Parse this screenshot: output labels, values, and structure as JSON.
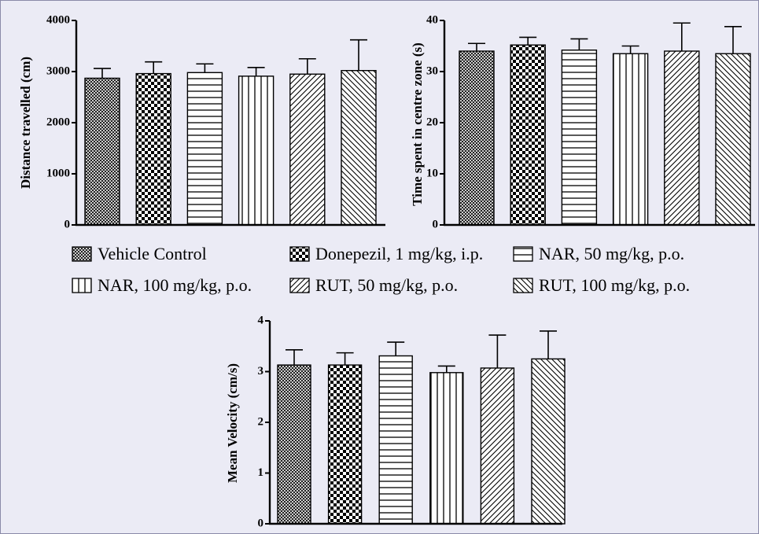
{
  "legend": [
    {
      "label": "Vehicle Control",
      "pattern": "cross-hatch"
    },
    {
      "label": "Donepezil, 1 mg/kg, i.p.",
      "pattern": "checkerboard"
    },
    {
      "label": "NAR, 50 mg/kg, p.o.",
      "pattern": "horizontal-lines"
    },
    {
      "label": "NAR, 100 mg/kg, p.o.",
      "pattern": "vertical-lines"
    },
    {
      "label": "RUT, 50 mg/kg, p.o.",
      "pattern": "diagonal-up"
    },
    {
      "label": "RUT, 100 mg/kg, p.o.",
      "pattern": "diagonal-down"
    }
  ],
  "colors": {
    "background": "#ebebf5",
    "bar_fill": "#ffffff",
    "ink": "#000000"
  },
  "chart_data": [
    {
      "type": "bar",
      "title": "",
      "xlabel": "",
      "ylabel": "Distance travelled (cm)",
      "ylim": [
        0,
        4000
      ],
      "yticks": [
        "0",
        "1000",
        "2000",
        "3000",
        "4000"
      ],
      "categories": [
        "Vehicle Control",
        "Donepezil, 1 mg/kg, i.p.",
        "NAR, 50 mg/kg, p.o.",
        "NAR, 100 mg/kg, p.o.",
        "RUT, 50 mg/kg, p.o.",
        "RUT, 100 mg/kg, p.o."
      ],
      "values": [
        2870,
        2960,
        2980,
        2910,
        2950,
        3020
      ],
      "errors": [
        190,
        230,
        170,
        170,
        300,
        600
      ],
      "grid": false
    },
    {
      "type": "bar",
      "title": "",
      "xlabel": "",
      "ylabel": "Time spent in centre zone (s)",
      "ylim": [
        0,
        40
      ],
      "yticks": [
        "0",
        "10",
        "20",
        "30",
        "40"
      ],
      "categories": [
        "Vehicle Control",
        "Donepezil, 1 mg/kg, i.p.",
        "NAR, 50 mg/kg, p.o.",
        "NAR, 100 mg/kg, p.o.",
        "RUT, 50 mg/kg, p.o.",
        "RUT, 100 mg/kg, p.o."
      ],
      "values": [
        34,
        35.2,
        34.2,
        33.5,
        34,
        33.5
      ],
      "errors": [
        1.5,
        1.5,
        2.2,
        1.5,
        5.5,
        5.3
      ],
      "grid": false
    },
    {
      "type": "bar",
      "title": "",
      "xlabel": "",
      "ylabel": "Mean Velocity (cm/s)",
      "ylim": [
        0,
        4
      ],
      "yticks": [
        "0",
        "1",
        "2",
        "3",
        "4"
      ],
      "categories": [
        "Vehicle Control",
        "Donepezil, 1 mg/kg, i.p.",
        "NAR, 50 mg/kg, p.o.",
        "NAR, 100 mg/kg, p.o.",
        "RUT, 50 mg/kg, p.o.",
        "RUT, 100 mg/kg, p.o."
      ],
      "values": [
        3.13,
        3.13,
        3.31,
        2.98,
        3.07,
        3.25
      ],
      "errors": [
        0.3,
        0.24,
        0.27,
        0.13,
        0.65,
        0.55
      ],
      "grid": false
    }
  ]
}
